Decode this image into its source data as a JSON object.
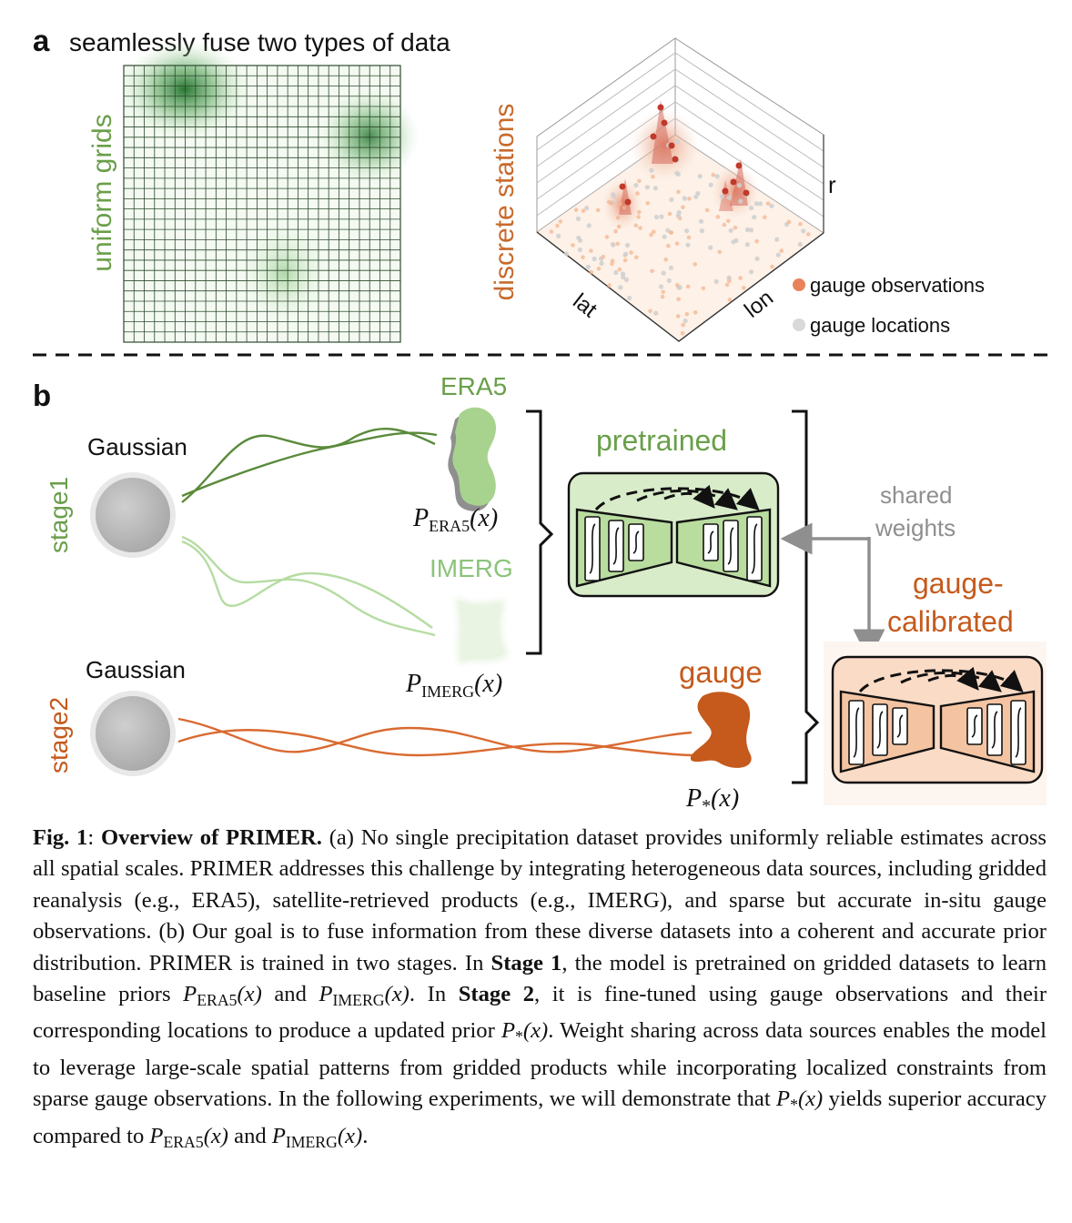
{
  "panel_a": {
    "letter": "a",
    "title": "seamlessly fuse two types of data",
    "grid_label": "uniform grids",
    "stations_label": "discrete stations",
    "axis_lat": "lat",
    "axis_lon": "lon",
    "axis_r": "r",
    "legend": {
      "observations": "gauge observations",
      "locations": "gauge locations"
    }
  },
  "panel_b": {
    "letter": "b",
    "stage1": "stage1",
    "stage2": "stage2",
    "gaussian1": "Gaussian",
    "gaussian2": "Gaussian",
    "era5": "ERA5",
    "imerg": "IMERG",
    "gauge": "gauge",
    "p_era5_main": "P",
    "p_era5_sub": "ERA5",
    "p_era5_arg": "(x)",
    "p_imerg_main": "P",
    "p_imerg_sub": "IMERG",
    "p_imerg_arg": "(x)",
    "p_star_main": "P",
    "p_star_sub": "*",
    "p_star_arg": "(x)",
    "pretrained": "pretrained",
    "shared1": "shared",
    "shared2": "weights",
    "calibrated1": "gauge-",
    "calibrated2": "calibrated"
  },
  "colors": {
    "green": "#5a8a3a",
    "light_green": "#a7d38e",
    "orange": "#c55a1c",
    "gray": "#8f8f8f"
  },
  "caption": {
    "fig_label": "Fig. 1",
    "title": "Overview of PRIMER.",
    "part_a": "(a)",
    "text_a": "No single precipitation dataset provides uniformly reliable estimates across all spatial scales. PRIMER addresses this challenge by integrating heterogeneous data sources, including gridded reanalysis (e.g., ERA5), satellite-retrieved products (e.g., IMERG), and sparse but accurate in-situ gauge observations.",
    "part_b": "(b)",
    "text_b1": "Our goal is to fuse information from these diverse datasets into a coherent and accurate prior distribution. PRIMER is trained in two stages. In",
    "stage1": "Stage 1",
    "text_b2": ", the model is pretrained on gridded datasets to learn baseline priors",
    "and1": "and",
    "text_b3": ". In",
    "stage2": "Stage 2",
    "text_b4": ", it is fine-tuned using gauge observations and their corresponding locations to produce a updated prior",
    "text_b5": ". Weight sharing across data sources enables the model to leverage large-scale spatial patterns from gridded products while incorporating localized constraints from sparse gauge observations. In the following experiments, we will demonstrate that",
    "text_b6": "yields superior accuracy compared to",
    "and2": "and",
    "end": ".",
    "sym_p": "P",
    "sub_era5": "ERA5",
    "sub_imerg": "IMERG",
    "sub_star": "*",
    "arg": "(x)"
  }
}
